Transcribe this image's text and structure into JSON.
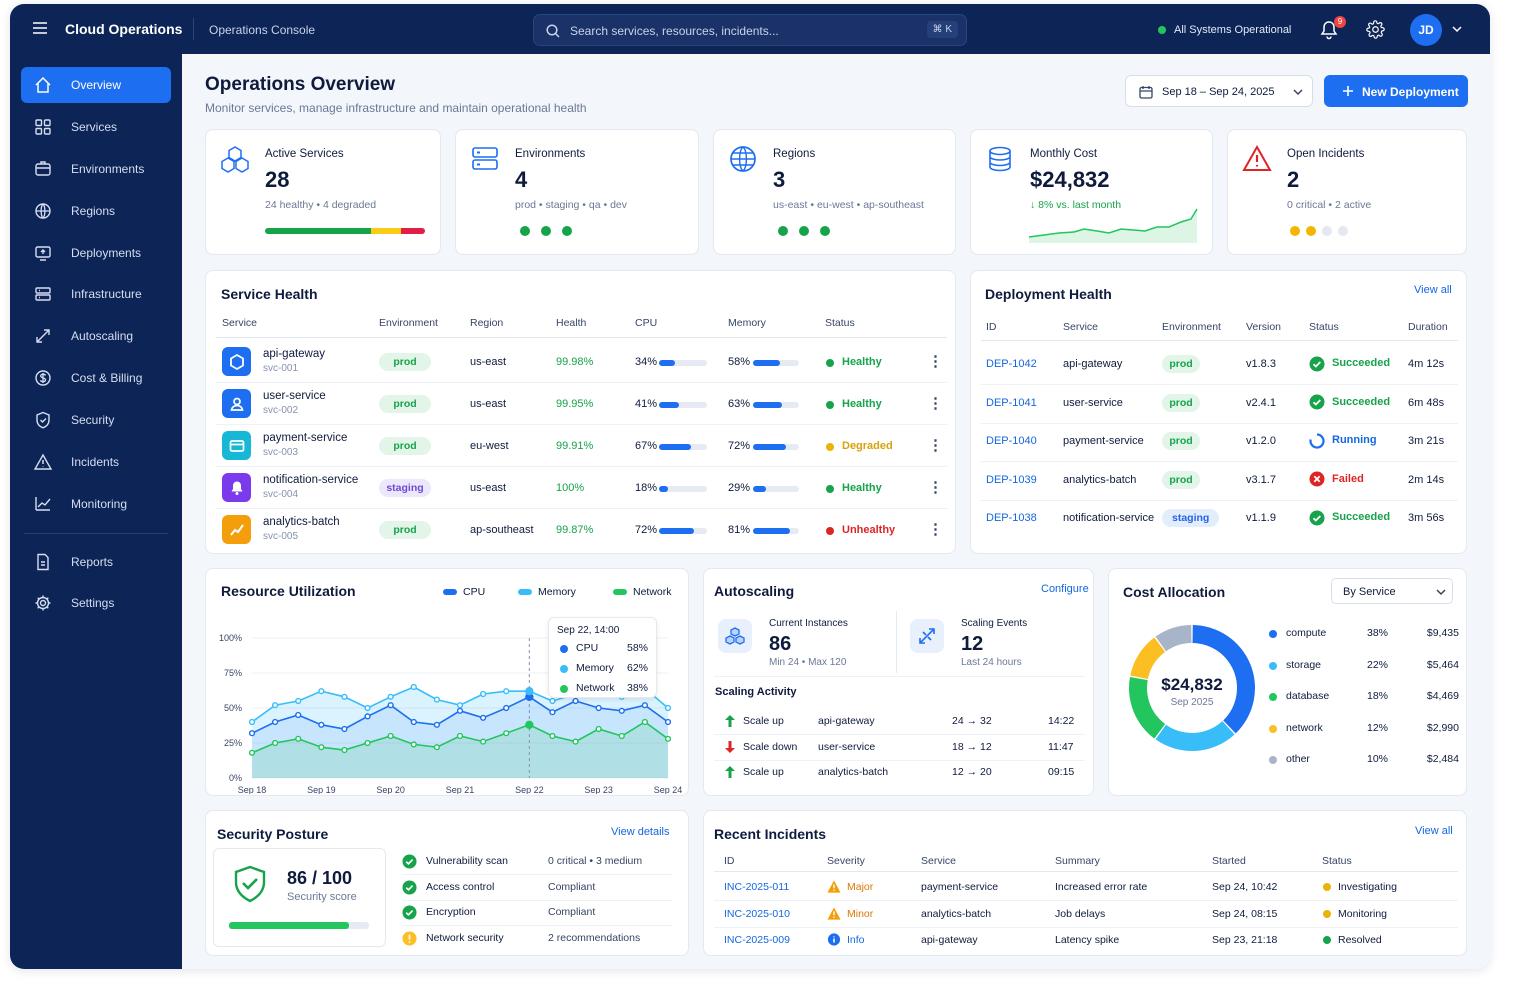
{
  "topbar": {
    "app_title": "Cloud Operations",
    "subtitle": "Operations Console",
    "search_placeholder": "Search services, resources, incidents...",
    "search_shortcut": "⌘ K",
    "system_status": "All Systems Operational",
    "notification_count": "9",
    "avatar_initials": "JD"
  },
  "sidebar": {
    "items": [
      {
        "label": "Overview",
        "icon": "home-icon"
      },
      {
        "label": "Services",
        "icon": "grid-icon"
      },
      {
        "label": "Environments",
        "icon": "box-icon"
      },
      {
        "label": "Regions",
        "icon": "globe-icon"
      },
      {
        "label": "Deployments",
        "icon": "deploy-icon"
      },
      {
        "label": "Infrastructure",
        "icon": "server-icon"
      },
      {
        "label": "Autoscaling",
        "icon": "scale-icon"
      },
      {
        "label": "Cost & Billing",
        "icon": "dollar-icon"
      },
      {
        "label": "Security",
        "icon": "shield-icon"
      },
      {
        "label": "Incidents",
        "icon": "warning-icon"
      },
      {
        "label": "Monitoring",
        "icon": "chart-icon"
      },
      {
        "label": "Reports",
        "icon": "report-icon"
      },
      {
        "label": "Settings",
        "icon": "gear-icon"
      }
    ]
  },
  "header": {
    "title": "Operations Overview",
    "subtitle": "Monitor services, manage infrastructure and maintain operational health",
    "date_range": "Sep 18 – Sep 24, 2025",
    "new_deployment": "New Deployment"
  },
  "kpis": [
    {
      "label": "Active Services",
      "value": "28",
      "detail": "24 healthy • 4 degraded"
    },
    {
      "label": "Environments",
      "value": "4",
      "detail": "prod • staging • qa • dev"
    },
    {
      "label": "Regions",
      "value": "3",
      "detail": "us-east • eu-west • ap-southeast"
    },
    {
      "label": "Monthly Cost",
      "value": "$24,832",
      "detail": "8% vs. last month"
    },
    {
      "label": "Open Incidents",
      "value": "2",
      "detail": "0 critical • 2 active"
    }
  ],
  "service_health": {
    "title": "Service Health",
    "columns": [
      "Service",
      "Environment",
      "Region",
      "Health",
      "CPU",
      "Memory",
      "Status"
    ],
    "rows": [
      {
        "name": "api-gateway",
        "id": "svc-001",
        "env": "prod",
        "region": "us-east",
        "health": "99.98%",
        "cpu": "34%",
        "cpu_v": 0.34,
        "mem": "58%",
        "mem_v": 0.58,
        "status": "Healthy",
        "status_color": "#16a34a",
        "icon_color": "#1d6ef0"
      },
      {
        "name": "user-service",
        "id": "svc-002",
        "env": "prod",
        "region": "us-east",
        "health": "99.95%",
        "cpu": "41%",
        "cpu_v": 0.41,
        "mem": "63%",
        "mem_v": 0.63,
        "status": "Healthy",
        "status_color": "#16a34a",
        "icon_color": "#1d6ef0"
      },
      {
        "name": "payment-service",
        "id": "svc-003",
        "env": "prod",
        "region": "eu-west",
        "health": "99.91%",
        "cpu": "67%",
        "cpu_v": 0.67,
        "mem": "72%",
        "mem_v": 0.72,
        "status": "Degraded",
        "status_color": "#eab308",
        "icon_color": "#17b8d6"
      },
      {
        "name": "notification-service",
        "id": "svc-004",
        "env": "staging",
        "region": "us-east",
        "health": "100%",
        "cpu": "18%",
        "cpu_v": 0.18,
        "mem": "29%",
        "mem_v": 0.29,
        "status": "Healthy",
        "status_color": "#16a34a",
        "icon_color": "#7c3aed"
      },
      {
        "name": "analytics-batch",
        "id": "svc-005",
        "env": "prod",
        "region": "ap-southeast",
        "health": "99.87%",
        "cpu": "72%",
        "cpu_v": 0.72,
        "mem": "81%",
        "mem_v": 0.81,
        "status": "Unhealthy",
        "status_color": "#dc2626",
        "icon_color": "#f59e0b"
      }
    ]
  },
  "deployment_health": {
    "title": "Deployment Health",
    "view_all": "View all",
    "columns": [
      "ID",
      "Service",
      "Environment",
      "Version",
      "Status",
      "Duration"
    ],
    "rows": [
      {
        "id": "DEP-1042",
        "service": "api-gateway",
        "env": "prod",
        "version": "v1.8.3",
        "status": "Succeeded",
        "kind": "ok",
        "duration": "4m 12s"
      },
      {
        "id": "DEP-1041",
        "service": "user-service",
        "env": "prod",
        "version": "v2.4.1",
        "status": "Succeeded",
        "kind": "ok",
        "duration": "6m 48s"
      },
      {
        "id": "DEP-1040",
        "service": "payment-service",
        "env": "prod",
        "version": "v1.2.0",
        "status": "Running",
        "kind": "run",
        "duration": "3m 21s"
      },
      {
        "id": "DEP-1039",
        "service": "analytics-batch",
        "env": "prod",
        "version": "v3.1.7",
        "status": "Failed",
        "kind": "fail",
        "duration": "2m 14s"
      },
      {
        "id": "DEP-1038",
        "service": "notification-service",
        "env": "staging",
        "version": "v1.1.9",
        "status": "Succeeded",
        "kind": "ok",
        "duration": "3m 56s"
      }
    ]
  },
  "resource_utilization": {
    "title": "Resource Utilization",
    "tooltip": {
      "date": "Sep 22, 14:00",
      "rows": [
        {
          "label": "CPU",
          "value": "58%"
        },
        {
          "label": "Memory",
          "value": "62%"
        },
        {
          "label": "Network",
          "value": "38%"
        }
      ]
    }
  },
  "chart_data": {
    "type": "area",
    "title": "Resource Utilization",
    "x": [
      "Sep 18",
      "",
      "",
      "Sep 19",
      "",
      "",
      "Sep 20",
      "",
      "",
      "Sep 21",
      "",
      "",
      "Sep 22",
      "",
      "",
      "Sep 23",
      "",
      "",
      "Sep 24"
    ],
    "xticks": [
      "Sep 18",
      "Sep 19",
      "Sep 20",
      "Sep 21",
      "Sep 22",
      "Sep 23",
      "Sep 24"
    ],
    "yticks": [
      "0%",
      "25%",
      "50%",
      "75%",
      "100%"
    ],
    "ylim": [
      0,
      100
    ],
    "legend_position": "top-right",
    "series": [
      {
        "name": "CPU",
        "color": "#1d6ef0",
        "values": [
          32,
          40,
          45,
          38,
          35,
          44,
          52,
          40,
          38,
          48,
          43,
          50,
          58,
          47,
          55,
          50,
          48,
          52,
          40
        ]
      },
      {
        "name": "Memory",
        "color": "#38bdf8",
        "values": [
          40,
          52,
          55,
          62,
          58,
          50,
          58,
          65,
          56,
          52,
          60,
          62,
          62,
          55,
          60,
          65,
          58,
          64,
          50
        ]
      },
      {
        "name": "Network",
        "color": "#22c55e",
        "values": [
          18,
          25,
          28,
          22,
          20,
          25,
          30,
          24,
          22,
          30,
          26,
          32,
          38,
          30,
          26,
          35,
          30,
          40,
          28
        ]
      }
    ]
  },
  "autoscaling": {
    "title": "Autoscaling",
    "configure": "Configure",
    "instances_label": "Current Instances",
    "instances_value": "86",
    "instances_detail": "Min 24 • Max 120",
    "events_label": "Scaling Events",
    "events_value": "12",
    "events_detail": "Last 24 hours",
    "activity_title": "Scaling Activity",
    "activity": [
      {
        "action": "Scale up",
        "dir": "up",
        "service": "api-gateway",
        "change": "24 → 32",
        "time": "14:22"
      },
      {
        "action": "Scale down",
        "dir": "down",
        "service": "user-service",
        "change": "18 → 12",
        "time": "11:47"
      },
      {
        "action": "Scale up",
        "dir": "up",
        "service": "analytics-batch",
        "change": "12 → 20",
        "time": "09:15"
      }
    ]
  },
  "cost_allocation": {
    "title": "Cost Allocation",
    "group_by": "By Service",
    "total": "$24,832",
    "period": "Sep 2025",
    "items": [
      {
        "name": "compute",
        "pct": "38%",
        "value": "$9,435",
        "share": 38,
        "color": "#1d6ef0"
      },
      {
        "name": "storage",
        "pct": "22%",
        "value": "$5,464",
        "share": 22,
        "color": "#38bdf8"
      },
      {
        "name": "database",
        "pct": "18%",
        "value": "$4,469",
        "share": 18,
        "color": "#22c55e"
      },
      {
        "name": "network",
        "pct": "12%",
        "value": "$2,990",
        "share": 12,
        "color": "#fbbf24"
      },
      {
        "name": "other",
        "pct": "10%",
        "value": "$2,484",
        "share": 10,
        "color": "#a8b4c8"
      }
    ]
  },
  "security": {
    "title": "Security Posture",
    "view_details": "View details",
    "score": "86 / 100",
    "score_label": "Security score",
    "score_value": 0.86,
    "checks": [
      {
        "label": "Vulnerability scan",
        "detail": "0 critical • 3 medium",
        "ok": true
      },
      {
        "label": "Access control",
        "detail": "Compliant",
        "ok": true
      },
      {
        "label": "Encryption",
        "detail": "Compliant",
        "ok": true
      },
      {
        "label": "Network security",
        "detail": "2 recommendations",
        "ok": false
      }
    ]
  },
  "incidents": {
    "title": "Recent Incidents",
    "view_all": "View all",
    "columns": [
      "ID",
      "Severity",
      "Service",
      "Summary",
      "Started",
      "Status"
    ],
    "rows": [
      {
        "id": "INC-2025-011",
        "severity": "Major",
        "sev_kind": "warn",
        "service": "payment-service",
        "summary": "Increased error rate",
        "started": "Sep 24, 10:42",
        "status": "Investigating",
        "status_color": "#eab308"
      },
      {
        "id": "INC-2025-010",
        "severity": "Minor",
        "sev_kind": "warn",
        "service": "analytics-batch",
        "summary": "Job delays",
        "started": "Sep 24, 08:15",
        "status": "Monitoring",
        "status_color": "#eab308"
      },
      {
        "id": "INC-2025-009",
        "severity": "Info",
        "sev_kind": "info",
        "service": "api-gateway",
        "summary": "Latency spike",
        "started": "Sep 23, 21:18",
        "status": "Resolved",
        "status_color": "#16a34a"
      }
    ]
  }
}
